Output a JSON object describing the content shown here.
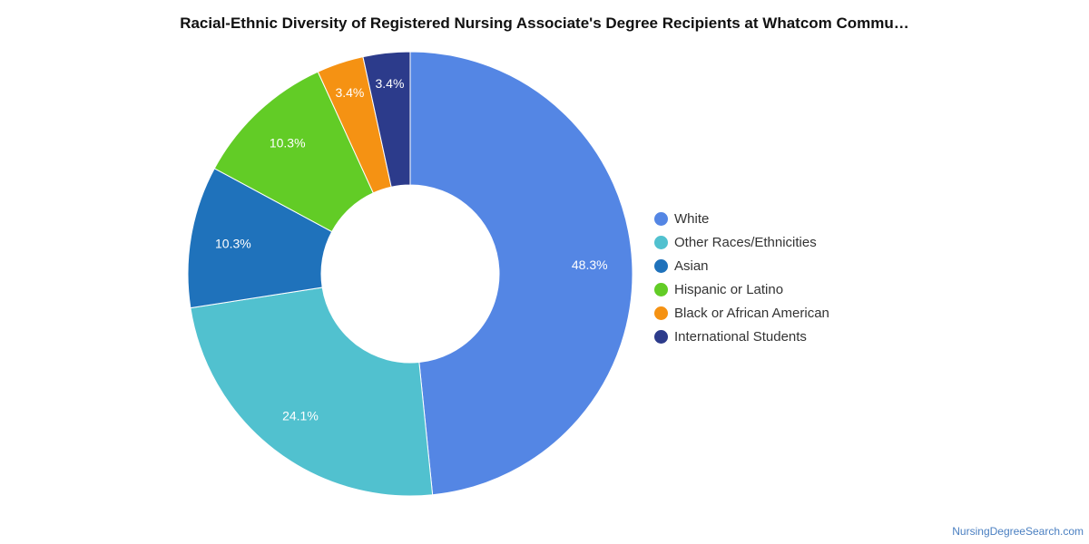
{
  "chart_data": {
    "type": "pie",
    "variant": "donut",
    "title": "Racial-Ethnic Diversity of Registered Nursing Associate's Degree Recipients at Whatcom Commu…",
    "slices": [
      {
        "label": "White",
        "value": 48.3,
        "display": "48.3%",
        "color": "#5486e4"
      },
      {
        "label": "Other Races/Ethnicities",
        "value": 24.1,
        "display": "24.1%",
        "color": "#51c1cf"
      },
      {
        "label": "Asian",
        "value": 10.3,
        "display": "10.3%",
        "color": "#1f72bb"
      },
      {
        "label": "Hispanic or Latino",
        "value": 10.3,
        "display": "10.3%",
        "color": "#62cc26"
      },
      {
        "label": "Black or African American",
        "value": 3.4,
        "display": "3.4%",
        "color": "#f59213"
      },
      {
        "label": "International Students",
        "value": 3.4,
        "display": "3.4%",
        "color": "#2c3b8b"
      }
    ],
    "legend_position": "right"
  },
  "credit": "NursingDegreeSearch.com"
}
